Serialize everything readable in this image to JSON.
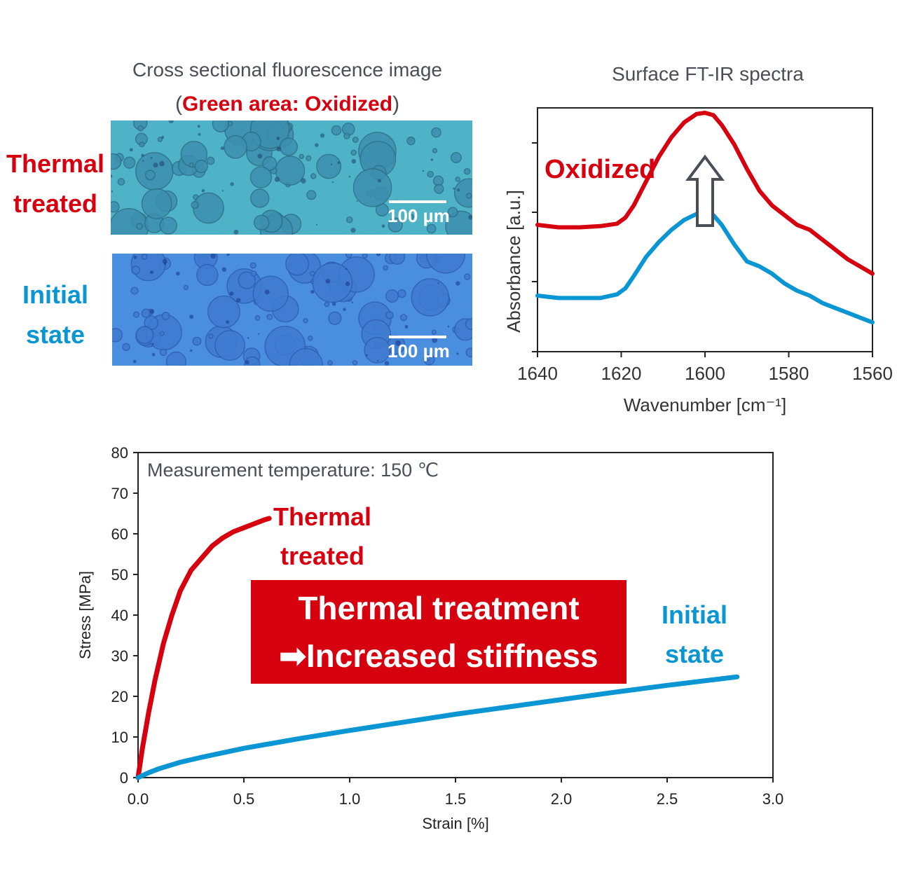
{
  "colors": {
    "thermal": "#d7000f",
    "initial": "#0a96d2",
    "text_gray": "#4a4f57",
    "green_micro": "#3aa8b8",
    "blue_micro": "#3f86d8"
  },
  "fluorescence": {
    "title": "Cross sectional fluorescence image",
    "subtitle_open": "(",
    "subtitle_highlight": "Green area: Oxidized",
    "subtitle_close": ")",
    "thermal_label_line1": "Thermal",
    "thermal_label_line2": "treated",
    "initial_label_line1": "Initial",
    "initial_label_line2": "state",
    "scale_bar_text_top": "100 µm",
    "scale_bar_text_bottom": "100 µm"
  },
  "chart_data": [
    {
      "type": "line",
      "title": "Surface FT-IR spectra",
      "xlabel": "Wavenumber [cm⁻¹]",
      "ylabel": "Absorbance [a.u.]",
      "xlim": [
        1640,
        1560
      ],
      "x_reversed": true,
      "x_ticks": [
        1640,
        1620,
        1600,
        1580,
        1560
      ],
      "y_ticks_labeled": false,
      "grid": false,
      "annotation": "Oxidized",
      "annotation_arrow": "upward hollow arrow at 1600",
      "series": [
        {
          "color": "#d7000f",
          "x": [
            1640,
            1635,
            1630,
            1625,
            1621,
            1619,
            1617,
            1614,
            1611,
            1608,
            1605,
            1602,
            1600,
            1598,
            1596,
            1593,
            1590,
            1587,
            1584,
            1581,
            1578,
            1575,
            1572,
            1569,
            1566,
            1563,
            1560
          ],
          "y": [
            0.52,
            0.51,
            0.51,
            0.515,
            0.525,
            0.55,
            0.6,
            0.7,
            0.8,
            0.88,
            0.94,
            0.975,
            0.98,
            0.97,
            0.93,
            0.85,
            0.75,
            0.66,
            0.6,
            0.56,
            0.52,
            0.5,
            0.46,
            0.42,
            0.38,
            0.35,
            0.32
          ]
        },
        {
          "color": "#0a96d2",
          "x": [
            1640,
            1635,
            1630,
            1625,
            1621,
            1619,
            1617,
            1614,
            1611,
            1608,
            1605,
            1602,
            1600,
            1598,
            1596,
            1593,
            1590,
            1587,
            1584,
            1581,
            1578,
            1575,
            1572,
            1569,
            1566,
            1563,
            1560
          ],
          "y": [
            0.23,
            0.22,
            0.22,
            0.22,
            0.235,
            0.26,
            0.31,
            0.39,
            0.45,
            0.5,
            0.54,
            0.565,
            0.57,
            0.56,
            0.52,
            0.44,
            0.37,
            0.35,
            0.32,
            0.28,
            0.25,
            0.23,
            0.2,
            0.18,
            0.16,
            0.14,
            0.12
          ]
        }
      ]
    },
    {
      "type": "line",
      "title": "Measurement temperature: 150 ℃",
      "xlabel": "Strain [%]",
      "ylabel": "Stress [MPa]",
      "xlim": [
        0,
        3.0
      ],
      "ylim": [
        0,
        80
      ],
      "x_ticks": [
        "0.0",
        "0.5",
        "1.0",
        "1.5",
        "2.0",
        "2.5",
        "3.0"
      ],
      "y_ticks": [
        "0",
        "10",
        "20",
        "30",
        "40",
        "50",
        "60",
        "70",
        "80"
      ],
      "grid": false,
      "series": [
        {
          "name": "Thermal treated",
          "name_line1": "Thermal",
          "name_line2": "treated",
          "color": "#d7000f",
          "x": [
            0,
            0.02,
            0.05,
            0.08,
            0.12,
            0.16,
            0.2,
            0.25,
            0.3,
            0.35,
            0.4,
            0.45,
            0.5,
            0.55,
            0.6,
            0.62
          ],
          "y": [
            0,
            7,
            16,
            24,
            33,
            40,
            46,
            51,
            54,
            57,
            59,
            60.5,
            61.5,
            62.5,
            63.5,
            63.8
          ]
        },
        {
          "name": "Initial state",
          "name_line1": "Initial",
          "name_line2": "state",
          "color": "#0a96d2",
          "x": [
            0,
            0.05,
            0.1,
            0.2,
            0.3,
            0.5,
            0.75,
            1.0,
            1.25,
            1.5,
            1.75,
            2.0,
            2.25,
            2.5,
            2.75,
            2.83
          ],
          "y": [
            0,
            1.2,
            2.2,
            3.8,
            5.0,
            7.2,
            9.5,
            11.6,
            13.6,
            15.6,
            17.4,
            19.2,
            21.0,
            22.7,
            24.3,
            24.8
          ]
        }
      ],
      "callout_line1": "Thermal treatment",
      "callout_line2": "➡Increased stiffness"
    }
  ]
}
